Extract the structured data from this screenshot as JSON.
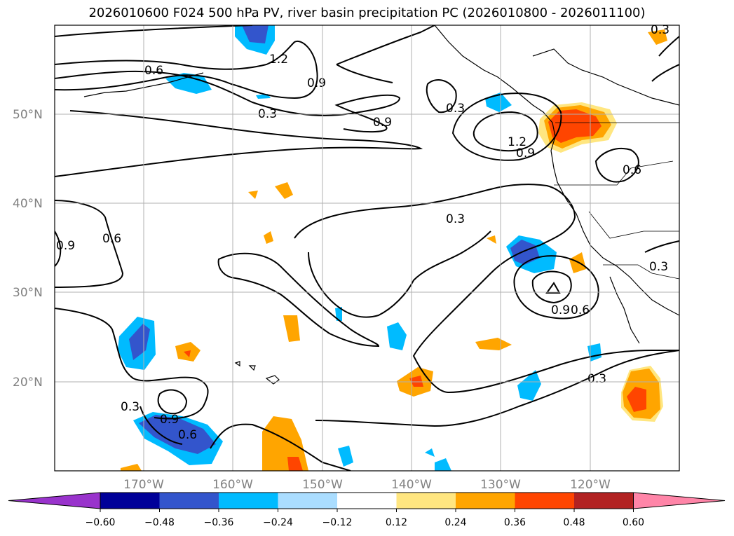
{
  "title": "2026010600 F024 500 hPa PV, river basin precipitation PC (2026010800 - 2026011100)",
  "lat_labels": [
    "50°N",
    "40°N",
    "30°N",
    "20°N"
  ],
  "lon_labels": [
    "170°W",
    "160°W",
    "150°W",
    "140°W",
    "130°W",
    "120°W"
  ],
  "contour_labels": [
    "1.2",
    "0.6",
    "0.9",
    "0.3",
    "0.9",
    "0.3",
    "1.2",
    "0.9",
    "0.6",
    "0.3",
    "0.6",
    "0.9",
    "0.3",
    "0.9",
    "0.6",
    "0.3",
    "0.3",
    "0.9",
    "0.6",
    "0.3"
  ],
  "colorbar": {
    "colors": [
      "#9933cc",
      "#000099",
      "#3355cc",
      "#00bbff",
      "#aaddff",
      "#ffffff",
      "#ffe680",
      "#ffa500",
      "#ff4500",
      "#b22222",
      "#ff85a8"
    ],
    "ticks": [
      "−0.60",
      "−0.48",
      "−0.36",
      "−0.24",
      "−0.12",
      "0.12",
      "0.24",
      "0.36",
      "0.48",
      "0.60"
    ]
  }
}
